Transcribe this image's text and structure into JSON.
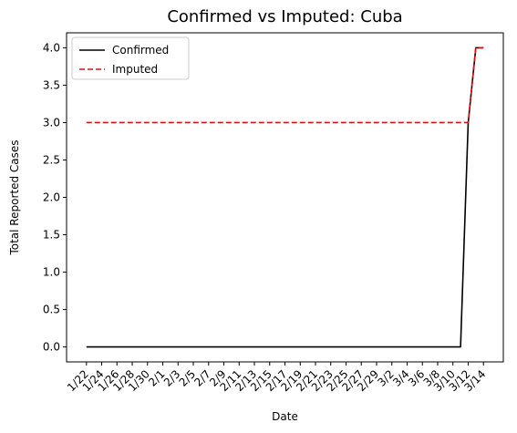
{
  "chart_data": {
    "type": "line",
    "title": "Confirmed vs Imputed: Cuba",
    "xlabel": "Date",
    "ylabel": "Total Reported Cases",
    "ylim": [
      -0.2,
      4.2
    ],
    "yticks": [
      "0.0",
      "0.5",
      "1.0",
      "1.5",
      "2.0",
      "2.5",
      "3.0",
      "3.5",
      "4.0"
    ],
    "xticks": [
      "1/22",
      "1/24",
      "1/26",
      "1/28",
      "1/30",
      "2/1",
      "2/3",
      "2/5",
      "2/7",
      "2/9",
      "2/11",
      "2/13",
      "2/15",
      "2/17",
      "2/19",
      "2/21",
      "2/23",
      "2/25",
      "2/27",
      "2/29",
      "3/2",
      "3/4",
      "3/6",
      "3/8",
      "3/10",
      "3/12",
      "3/14"
    ],
    "grid": false,
    "legend_position": "top-left",
    "x": [
      "1/22",
      "1/23",
      "1/24",
      "1/25",
      "1/26",
      "1/27",
      "1/28",
      "1/29",
      "1/30",
      "1/31",
      "2/1",
      "2/2",
      "2/3",
      "2/4",
      "2/5",
      "2/6",
      "2/7",
      "2/8",
      "2/9",
      "2/10",
      "2/11",
      "2/12",
      "2/13",
      "2/14",
      "2/15",
      "2/16",
      "2/17",
      "2/18",
      "2/19",
      "2/20",
      "2/21",
      "2/22",
      "2/23",
      "2/24",
      "2/25",
      "2/26",
      "2/27",
      "2/28",
      "2/29",
      "3/1",
      "3/2",
      "3/3",
      "3/4",
      "3/5",
      "3/6",
      "3/7",
      "3/8",
      "3/9",
      "3/10",
      "3/11",
      "3/12",
      "3/13",
      "3/14"
    ],
    "series": [
      {
        "name": "Confirmed",
        "color": "#000000",
        "style": "solid",
        "values": [
          0,
          0,
          0,
          0,
          0,
          0,
          0,
          0,
          0,
          0,
          0,
          0,
          0,
          0,
          0,
          0,
          0,
          0,
          0,
          0,
          0,
          0,
          0,
          0,
          0,
          0,
          0,
          0,
          0,
          0,
          0,
          0,
          0,
          0,
          0,
          0,
          0,
          0,
          0,
          0,
          0,
          0,
          0,
          0,
          0,
          0,
          0,
          0,
          0,
          0,
          3,
          4,
          4
        ]
      },
      {
        "name": "Imputed",
        "color": "#ff0000",
        "style": "dashed",
        "values": [
          3,
          3,
          3,
          3,
          3,
          3,
          3,
          3,
          3,
          3,
          3,
          3,
          3,
          3,
          3,
          3,
          3,
          3,
          3,
          3,
          3,
          3,
          3,
          3,
          3,
          3,
          3,
          3,
          3,
          3,
          3,
          3,
          3,
          3,
          3,
          3,
          3,
          3,
          3,
          3,
          3,
          3,
          3,
          3,
          3,
          3,
          3,
          3,
          3,
          3,
          3,
          4,
          4
        ]
      }
    ]
  }
}
